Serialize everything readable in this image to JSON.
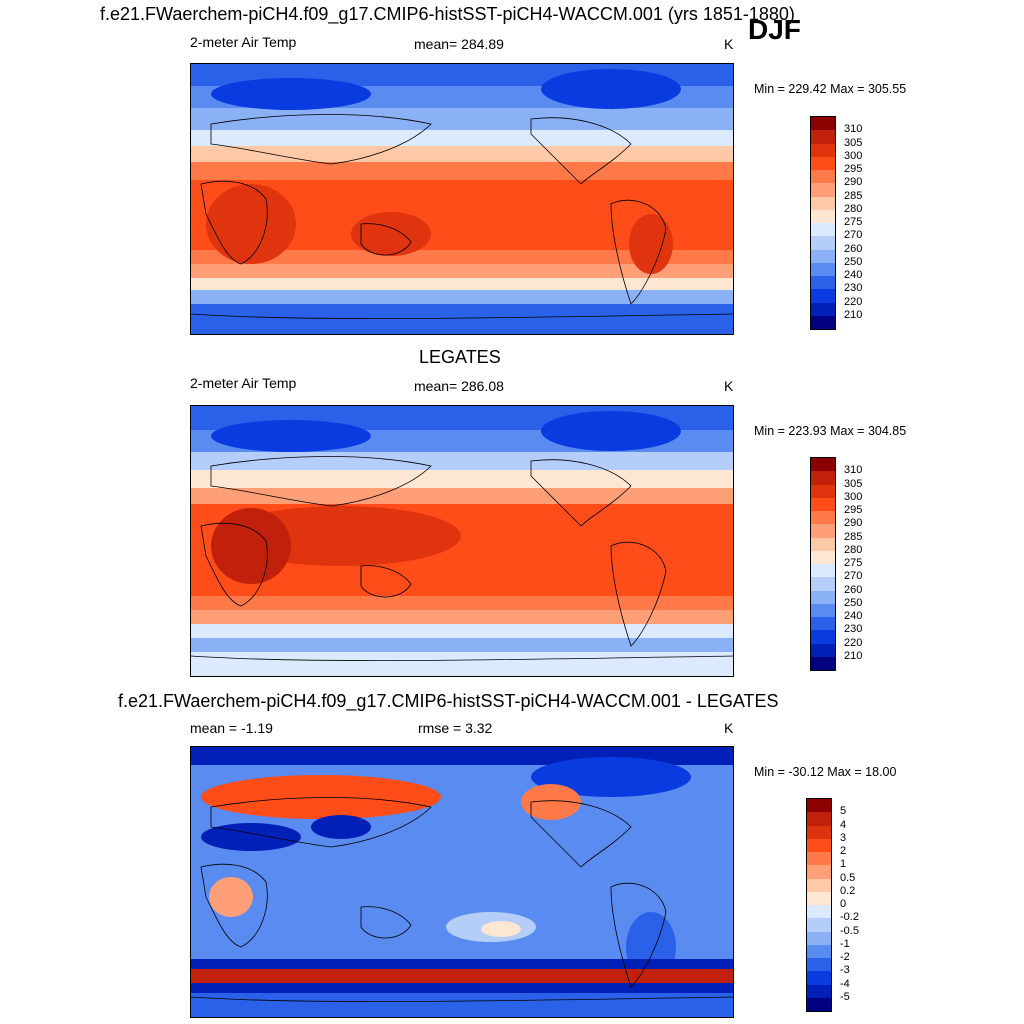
{
  "header": {
    "case_title": "f.e21.FWaerchem-piCH4.f09_g17.CMIP6-histSST-piCH4-WACCM.001 (yrs 1851-1880)",
    "season": "DJF"
  },
  "panels": [
    {
      "title": "",
      "left_label": "2-meter Air Temp",
      "center_label": "mean= 284.89",
      "units": "K",
      "minmax": "Min = 229.42 Max = 305.55"
    },
    {
      "title": "LEGATES",
      "left_label": "2-meter Air Temp",
      "center_label": "mean= 286.08",
      "units": "K",
      "minmax": "Min = 223.93 Max = 304.85"
    },
    {
      "title": "f.e21.FWaerchem-piCH4.f09_g17.CMIP6-histSST-piCH4-WACCM.001 - LEGATES",
      "left_label": "mean =  -1.19",
      "center_label": "rmse =   3.32",
      "units": "K",
      "minmax": "Min = -30.12 Max =  18.00"
    }
  ],
  "colorbars": {
    "temperature": {
      "labels": [
        "310",
        "305",
        "300",
        "295",
        "290",
        "285",
        "280",
        "275",
        "270",
        "260",
        "250",
        "240",
        "230",
        "220",
        "210"
      ],
      "colors": [
        "#8b0000",
        "#c1200a",
        "#e0340f",
        "#ff4d1a",
        "#ff7a48",
        "#ff9f78",
        "#ffc8a6",
        "#fde7d2",
        "#dbeaff",
        "#b5cef9",
        "#8ab0f5",
        "#5a8bf0",
        "#2a61e8",
        "#0a3be0",
        "#0020b8",
        "#000080"
      ]
    },
    "difference": {
      "labels": [
        "5",
        "4",
        "3",
        "2",
        "1",
        "0.5",
        "0.2",
        "0",
        "-0.2",
        "-0.5",
        "-1",
        "-2",
        "-3",
        "-4",
        "-5"
      ],
      "colors": [
        "#8b0000",
        "#c1200a",
        "#e0340f",
        "#ff4d1a",
        "#ff7a48",
        "#ff9f78",
        "#ffc8a6",
        "#fde7d2",
        "#dbeaff",
        "#b5cef9",
        "#8ab0f5",
        "#5a8bf0",
        "#2a61e8",
        "#0a3be0",
        "#0020b8",
        "#000080"
      ]
    }
  }
}
